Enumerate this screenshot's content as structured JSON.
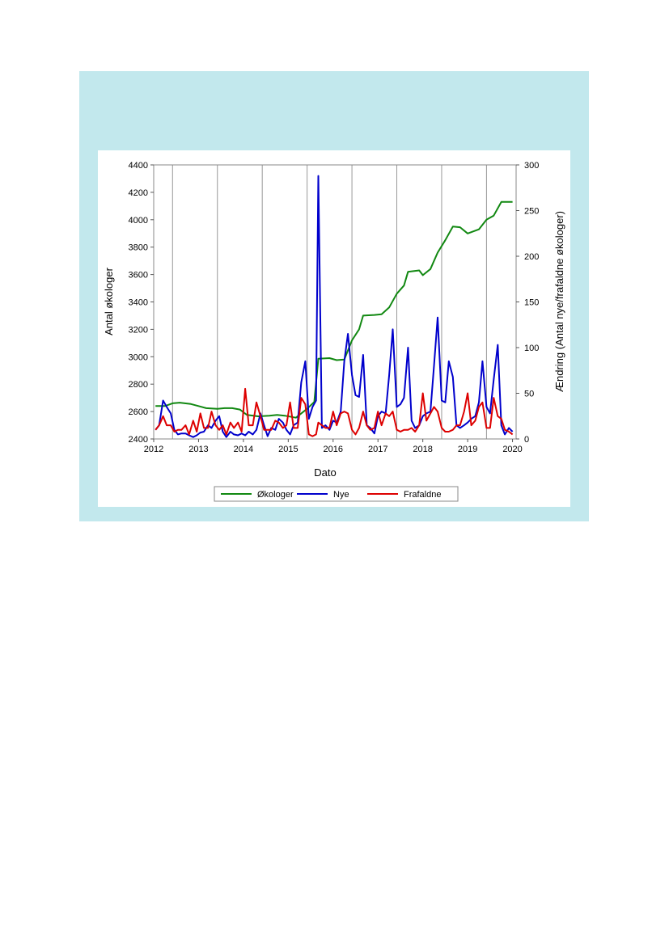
{
  "chart_data": {
    "type": "line",
    "xlabel": "Dato",
    "ylabel_left": "Antal økologer",
    "ylabel_right": "Ændring (Antal nye/frafaldne økologer)",
    "x_ticks": [
      "2012",
      "2013",
      "2014",
      "2015",
      "2016",
      "2017",
      "2018",
      "2019",
      "2020"
    ],
    "y_left_ticks": [
      "2400",
      "2600",
      "2800",
      "3000",
      "3200",
      "3400",
      "3600",
      "3800",
      "4000",
      "4200",
      "4400"
    ],
    "y_right_ticks": [
      "0",
      "50",
      "100",
      "150",
      "200",
      "250",
      "300"
    ],
    "xlim": [
      2012.0,
      2020.08
    ],
    "ylim_left": [
      2400,
      4400
    ],
    "ylim_right": [
      0,
      300
    ],
    "vertical_lines": [
      2012.42,
      2013.42,
      2014.42,
      2015.42,
      2016.42,
      2017.42,
      2018.42,
      2019.42
    ],
    "legend": {
      "placement": "bottom",
      "entries": [
        "Økologer",
        "Nye",
        "Frafaldne"
      ]
    },
    "series": [
      {
        "name": "Økologer",
        "axis": "left",
        "color": "#118811",
        "points": [
          [
            2012.04,
            2640
          ],
          [
            2012.25,
            2640
          ],
          [
            2012.42,
            2660
          ],
          [
            2012.58,
            2665
          ],
          [
            2012.83,
            2655
          ],
          [
            2013.0,
            2640
          ],
          [
            2013.17,
            2625
          ],
          [
            2013.42,
            2620
          ],
          [
            2013.58,
            2625
          ],
          [
            2013.75,
            2625
          ],
          [
            2013.92,
            2615
          ],
          [
            2014.08,
            2575
          ],
          [
            2014.33,
            2565
          ],
          [
            2014.58,
            2570
          ],
          [
            2014.75,
            2575
          ],
          [
            2014.92,
            2570
          ],
          [
            2015.17,
            2555
          ],
          [
            2015.42,
            2620
          ],
          [
            2015.58,
            2670
          ],
          [
            2015.67,
            2985
          ],
          [
            2015.92,
            2990
          ],
          [
            2016.08,
            2975
          ],
          [
            2016.25,
            2980
          ],
          [
            2016.42,
            3120
          ],
          [
            2016.58,
            3200
          ],
          [
            2016.67,
            3300
          ],
          [
            2016.92,
            3305
          ],
          [
            2017.08,
            3310
          ],
          [
            2017.25,
            3360
          ],
          [
            2017.42,
            3460
          ],
          [
            2017.58,
            3520
          ],
          [
            2017.67,
            3620
          ],
          [
            2017.92,
            3630
          ],
          [
            2018.0,
            3595
          ],
          [
            2018.17,
            3640
          ],
          [
            2018.33,
            3760
          ],
          [
            2018.5,
            3850
          ],
          [
            2018.67,
            3950
          ],
          [
            2018.83,
            3945
          ],
          [
            2019.0,
            3900
          ],
          [
            2019.25,
            3930
          ],
          [
            2019.42,
            4000
          ],
          [
            2019.58,
            4030
          ],
          [
            2019.75,
            4130
          ],
          [
            2020.0,
            4130
          ]
        ]
      },
      {
        "name": "Nye",
        "axis": "right",
        "color": "#0000cc",
        "points": [
          [
            2012.04,
            10
          ],
          [
            2012.12,
            15
          ],
          [
            2012.21,
            42
          ],
          [
            2012.29,
            35
          ],
          [
            2012.38,
            28
          ],
          [
            2012.46,
            10
          ],
          [
            2012.54,
            5
          ],
          [
            2012.62,
            6
          ],
          [
            2012.71,
            6
          ],
          [
            2012.79,
            4
          ],
          [
            2012.88,
            2
          ],
          [
            2012.96,
            4
          ],
          [
            2013.04,
            7
          ],
          [
            2013.12,
            8
          ],
          [
            2013.21,
            15
          ],
          [
            2013.29,
            12
          ],
          [
            2013.38,
            20
          ],
          [
            2013.46,
            25
          ],
          [
            2013.54,
            8
          ],
          [
            2013.62,
            2
          ],
          [
            2013.71,
            8
          ],
          [
            2013.79,
            5
          ],
          [
            2013.88,
            4
          ],
          [
            2013.96,
            6
          ],
          [
            2014.04,
            4
          ],
          [
            2014.12,
            8
          ],
          [
            2014.21,
            5
          ],
          [
            2014.29,
            10
          ],
          [
            2014.38,
            28
          ],
          [
            2014.46,
            15
          ],
          [
            2014.54,
            3
          ],
          [
            2014.62,
            12
          ],
          [
            2014.71,
            10
          ],
          [
            2014.79,
            22
          ],
          [
            2014.88,
            18
          ],
          [
            2014.96,
            10
          ],
          [
            2015.04,
            5
          ],
          [
            2015.12,
            15
          ],
          [
            2015.21,
            18
          ],
          [
            2015.29,
            62
          ],
          [
            2015.38,
            85
          ],
          [
            2015.46,
            22
          ],
          [
            2015.54,
            35
          ],
          [
            2015.62,
            42
          ],
          [
            2015.67,
            288
          ],
          [
            2015.75,
            12
          ],
          [
            2015.83,
            15
          ],
          [
            2015.92,
            10
          ],
          [
            2016.0,
            20
          ],
          [
            2016.08,
            18
          ],
          [
            2016.17,
            30
          ],
          [
            2016.25,
            85
          ],
          [
            2016.33,
            115
          ],
          [
            2016.42,
            70
          ],
          [
            2016.5,
            48
          ],
          [
            2016.58,
            46
          ],
          [
            2016.67,
            92
          ],
          [
            2016.75,
            15
          ],
          [
            2016.83,
            12
          ],
          [
            2016.92,
            6
          ],
          [
            2017.0,
            25
          ],
          [
            2017.08,
            30
          ],
          [
            2017.17,
            28
          ],
          [
            2017.25,
            70
          ],
          [
            2017.33,
            120
          ],
          [
            2017.42,
            35
          ],
          [
            2017.5,
            38
          ],
          [
            2017.58,
            45
          ],
          [
            2017.67,
            100
          ],
          [
            2017.75,
            20
          ],
          [
            2017.83,
            12
          ],
          [
            2017.92,
            15
          ],
          [
            2018.0,
            25
          ],
          [
            2018.08,
            28
          ],
          [
            2018.17,
            30
          ],
          [
            2018.25,
            80
          ],
          [
            2018.33,
            133
          ],
          [
            2018.42,
            42
          ],
          [
            2018.5,
            40
          ],
          [
            2018.58,
            85
          ],
          [
            2018.67,
            68
          ],
          [
            2018.75,
            15
          ],
          [
            2018.83,
            12
          ],
          [
            2018.92,
            15
          ],
          [
            2019.0,
            18
          ],
          [
            2019.08,
            22
          ],
          [
            2019.17,
            25
          ],
          [
            2019.25,
            40
          ],
          [
            2019.33,
            85
          ],
          [
            2019.42,
            35
          ],
          [
            2019.5,
            28
          ],
          [
            2019.58,
            65
          ],
          [
            2019.67,
            103
          ],
          [
            2019.75,
            15
          ],
          [
            2019.83,
            5
          ],
          [
            2019.92,
            12
          ],
          [
            2020.0,
            8
          ]
        ]
      },
      {
        "name": "Frafaldne",
        "axis": "right",
        "color": "#dd0000",
        "points": [
          [
            2012.04,
            10
          ],
          [
            2012.12,
            15
          ],
          [
            2012.21,
            25
          ],
          [
            2012.29,
            15
          ],
          [
            2012.38,
            15
          ],
          [
            2012.46,
            8
          ],
          [
            2012.54,
            10
          ],
          [
            2012.62,
            10
          ],
          [
            2012.71,
            15
          ],
          [
            2012.79,
            5
          ],
          [
            2012.88,
            20
          ],
          [
            2012.96,
            8
          ],
          [
            2013.04,
            28
          ],
          [
            2013.12,
            12
          ],
          [
            2013.21,
            12
          ],
          [
            2013.29,
            30
          ],
          [
            2013.38,
            15
          ],
          [
            2013.46,
            10
          ],
          [
            2013.54,
            15
          ],
          [
            2013.62,
            5
          ],
          [
            2013.71,
            18
          ],
          [
            2013.79,
            12
          ],
          [
            2013.88,
            18
          ],
          [
            2013.96,
            8
          ],
          [
            2014.04,
            55
          ],
          [
            2014.12,
            15
          ],
          [
            2014.21,
            15
          ],
          [
            2014.29,
            40
          ],
          [
            2014.38,
            25
          ],
          [
            2014.46,
            10
          ],
          [
            2014.54,
            10
          ],
          [
            2014.62,
            10
          ],
          [
            2014.71,
            20
          ],
          [
            2014.79,
            18
          ],
          [
            2014.88,
            12
          ],
          [
            2014.96,
            15
          ],
          [
            2015.04,
            40
          ],
          [
            2015.12,
            12
          ],
          [
            2015.21,
            12
          ],
          [
            2015.29,
            45
          ],
          [
            2015.38,
            38
          ],
          [
            2015.46,
            5
          ],
          [
            2015.54,
            3
          ],
          [
            2015.62,
            5
          ],
          [
            2015.67,
            18
          ],
          [
            2015.75,
            15
          ],
          [
            2015.83,
            12
          ],
          [
            2015.92,
            12
          ],
          [
            2016.0,
            30
          ],
          [
            2016.08,
            15
          ],
          [
            2016.17,
            28
          ],
          [
            2016.25,
            30
          ],
          [
            2016.33,
            28
          ],
          [
            2016.42,
            10
          ],
          [
            2016.5,
            5
          ],
          [
            2016.58,
            12
          ],
          [
            2016.67,
            30
          ],
          [
            2016.75,
            15
          ],
          [
            2016.83,
            10
          ],
          [
            2016.92,
            12
          ],
          [
            2017.0,
            30
          ],
          [
            2017.08,
            15
          ],
          [
            2017.17,
            28
          ],
          [
            2017.25,
            25
          ],
          [
            2017.33,
            30
          ],
          [
            2017.42,
            10
          ],
          [
            2017.5,
            8
          ],
          [
            2017.58,
            10
          ],
          [
            2017.67,
            10
          ],
          [
            2017.75,
            12
          ],
          [
            2017.83,
            8
          ],
          [
            2017.92,
            15
          ],
          [
            2018.0,
            50
          ],
          [
            2018.08,
            20
          ],
          [
            2018.17,
            28
          ],
          [
            2018.25,
            35
          ],
          [
            2018.33,
            30
          ],
          [
            2018.42,
            12
          ],
          [
            2018.5,
            8
          ],
          [
            2018.58,
            8
          ],
          [
            2018.67,
            10
          ],
          [
            2018.75,
            15
          ],
          [
            2018.83,
            15
          ],
          [
            2018.92,
            30
          ],
          [
            2019.0,
            50
          ],
          [
            2019.08,
            15
          ],
          [
            2019.17,
            20
          ],
          [
            2019.25,
            35
          ],
          [
            2019.33,
            40
          ],
          [
            2019.42,
            12
          ],
          [
            2019.5,
            12
          ],
          [
            2019.58,
            45
          ],
          [
            2019.67,
            25
          ],
          [
            2019.75,
            22
          ],
          [
            2019.83,
            10
          ],
          [
            2019.92,
            8
          ],
          [
            2020.0,
            5
          ]
        ]
      }
    ]
  }
}
